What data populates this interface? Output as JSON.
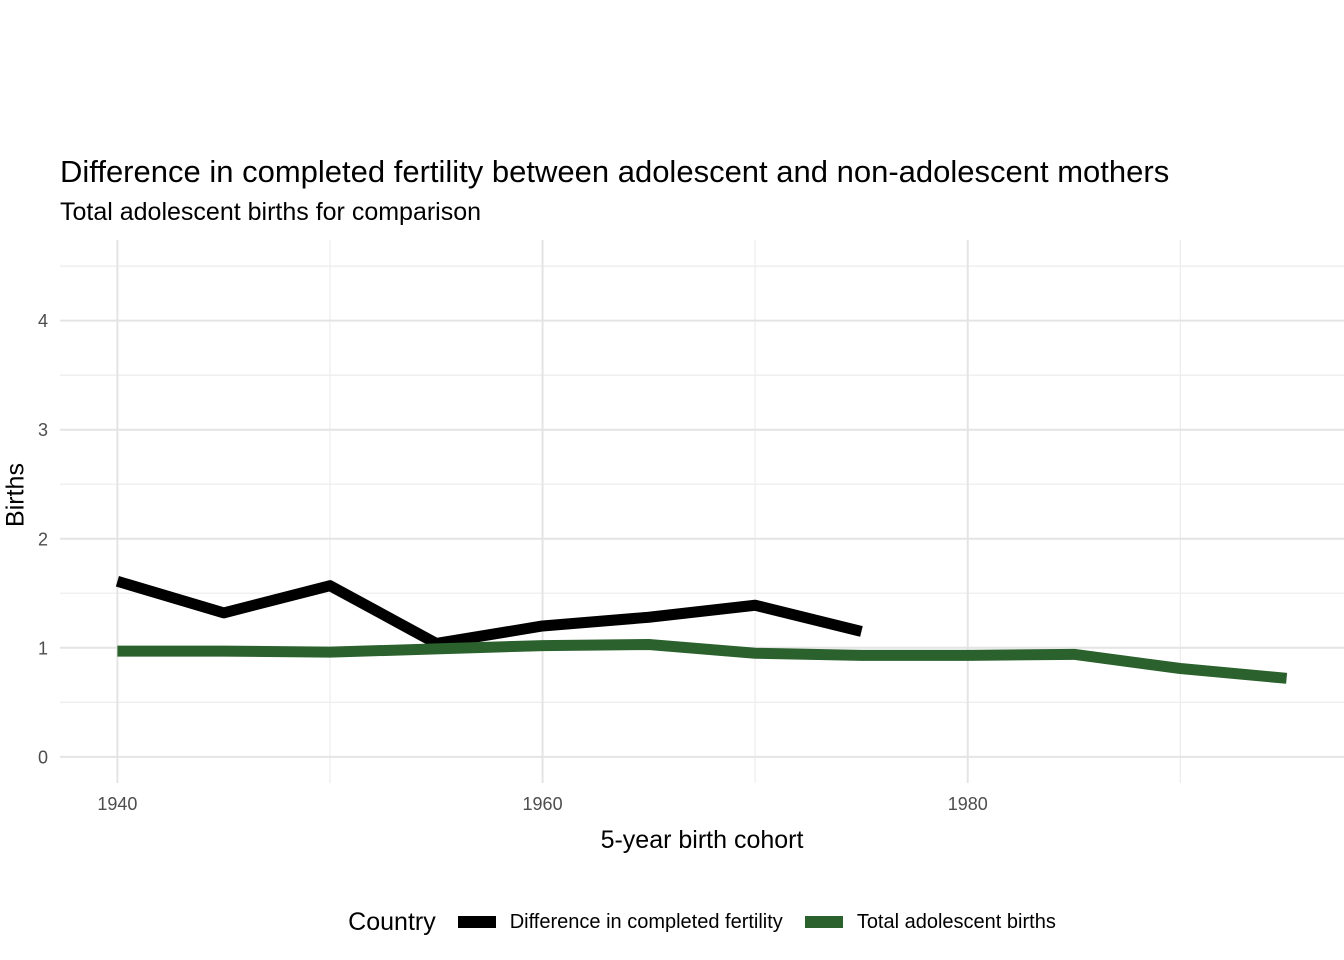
{
  "chart_data": {
    "type": "line",
    "title": "Difference in completed fertility between adolescent and non-adolescent mothers",
    "subtitle": "Total adolescent births for comparison",
    "xlabel": "5-year birth cohort",
    "ylabel": "Births",
    "legend_title": "Country",
    "legend_position": "bottom",
    "grid": "major and minor gridlines, no axis lines, white background",
    "xlim": [
      1937.3,
      1997.7
    ],
    "ylim": [
      -0.24,
      4.74
    ],
    "x_major_ticks": [
      1940,
      1960,
      1980
    ],
    "x_minor_gridlines": [
      1950,
      1970,
      1990
    ],
    "y_major_ticks": [
      0,
      1,
      2,
      3,
      4
    ],
    "y_minor_gridlines": [
      0.5,
      1.5,
      2.5,
      3.5,
      4.5
    ],
    "line_width": 11,
    "colors": {
      "background": "#ffffff",
      "grid_major": "#e4e4e4",
      "grid_minor": "#eeeeee",
      "tick_label": "#4d4d4d",
      "text": "#000000"
    },
    "series": [
      {
        "name": "Difference in completed fertility",
        "color": "#000000",
        "x": [
          1940,
          1945,
          1950,
          1955,
          1960,
          1965,
          1970,
          1975
        ],
        "y": [
          1.61,
          1.32,
          1.57,
          1.04,
          1.2,
          1.28,
          1.39,
          1.15
        ]
      },
      {
        "name": "Total adolescent births",
        "color": "#2b612d",
        "x": [
          1940,
          1945,
          1950,
          1955,
          1960,
          1965,
          1970,
          1975,
          1980,
          1985,
          1990,
          1995
        ],
        "y": [
          0.97,
          0.97,
          0.96,
          0.99,
          1.02,
          1.03,
          0.95,
          0.93,
          0.93,
          0.94,
          0.81,
          0.72
        ]
      }
    ]
  }
}
